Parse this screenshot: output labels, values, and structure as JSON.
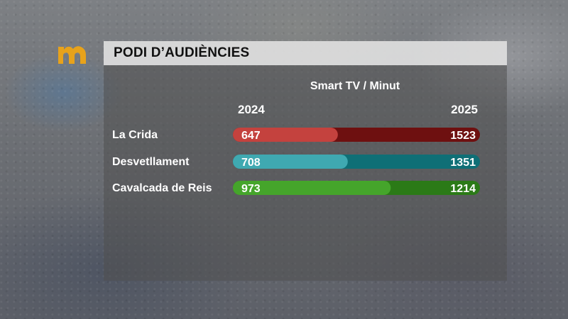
{
  "header": {
    "title": "PODI D’AUDIÈNCIES",
    "logo_icon": "m-logo-icon"
  },
  "chart_data": {
    "type": "bar",
    "subtitle": "Smart TV / Minut",
    "categories": [
      "La Crida",
      "Desvetllament",
      "Cavalcada de Reis"
    ],
    "series": [
      {
        "name": "2024",
        "values": [
          647,
          708,
          973
        ]
      },
      {
        "name": "2025",
        "values": [
          1523,
          1351,
          1214
        ]
      }
    ],
    "colors": {
      "dark": [
        "#6e1010",
        "#0f6f76",
        "#2b7a17"
      ],
      "light": [
        "#c4423e",
        "#3fa9b1",
        "#45a52b"
      ]
    }
  }
}
